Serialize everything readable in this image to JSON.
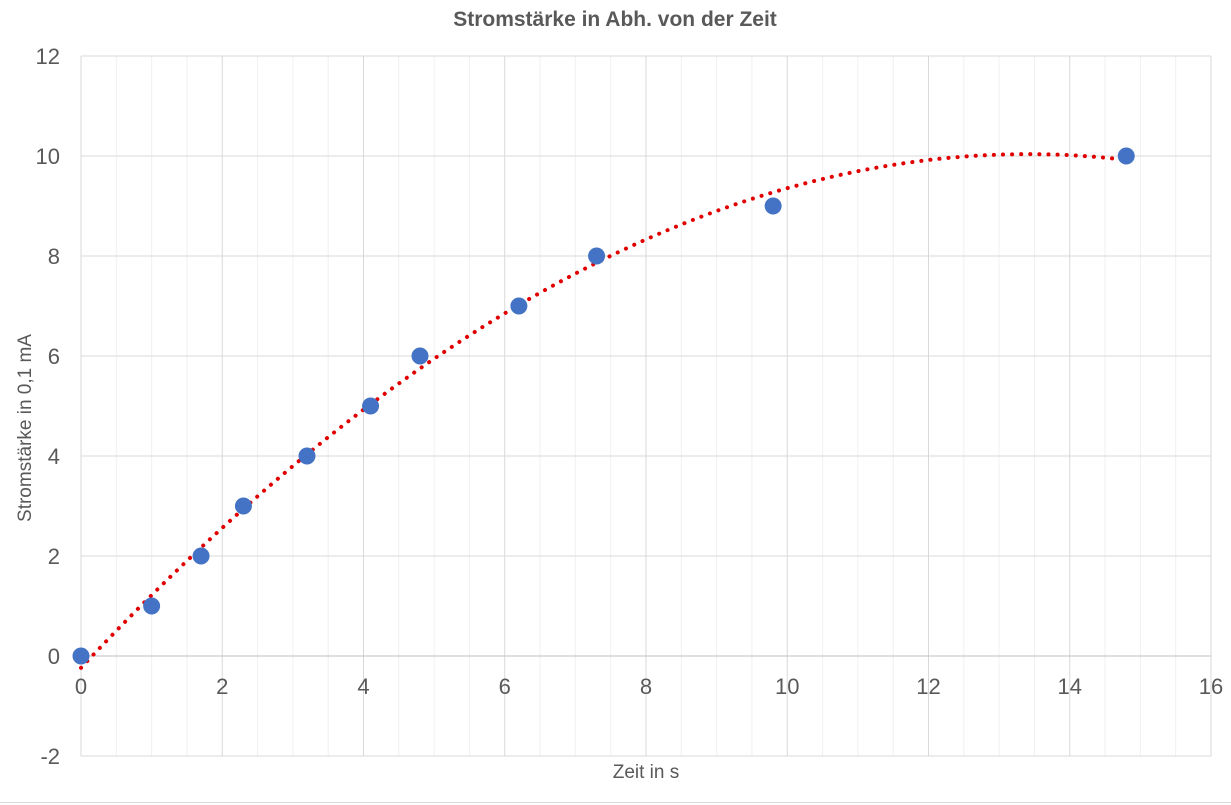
{
  "chart_data": {
    "type": "scatter",
    "title": "Stromstärke in Abh. von der Zeit",
    "xlabel": "Zeit in s",
    "ylabel": "Stromstärke in 0,1 mA",
    "xlim": [
      0,
      16
    ],
    "ylim": [
      -2,
      12
    ],
    "x_ticks": [
      0,
      2,
      4,
      6,
      8,
      10,
      12,
      14,
      16
    ],
    "y_ticks": [
      -2,
      0,
      2,
      4,
      6,
      8,
      10,
      12
    ],
    "grid": {
      "major": true,
      "minor_x": true
    },
    "series": [
      {
        "type": "scatter",
        "color": "#4472c4",
        "points": [
          {
            "x": 0,
            "y": 0
          },
          {
            "x": 1.0,
            "y": 1
          },
          {
            "x": 1.7,
            "y": 2
          },
          {
            "x": 2.3,
            "y": 3
          },
          {
            "x": 3.2,
            "y": 4
          },
          {
            "x": 4.1,
            "y": 5
          },
          {
            "x": 4.8,
            "y": 6
          },
          {
            "x": 6.2,
            "y": 7
          },
          {
            "x": 7.3,
            "y": 8
          },
          {
            "x": 9.8,
            "y": 9
          },
          {
            "x": 14.8,
            "y": 10
          }
        ]
      }
    ],
    "trendline": {
      "type": "polynomial",
      "style": "dotted",
      "color": "#e00000",
      "x_range": [
        0,
        14.8
      ],
      "points": [
        {
          "x": 0,
          "y": -0.2
        },
        {
          "x": 2,
          "y": 2.5
        },
        {
          "x": 4,
          "y": 4.9
        },
        {
          "x": 6,
          "y": 6.9
        },
        {
          "x": 8,
          "y": 8.4
        },
        {
          "x": 10,
          "y": 9.3
        },
        {
          "x": 12,
          "y": 9.9
        },
        {
          "x": 14,
          "y": 10.0
        },
        {
          "x": 14.8,
          "y": 9.95
        }
      ]
    }
  }
}
